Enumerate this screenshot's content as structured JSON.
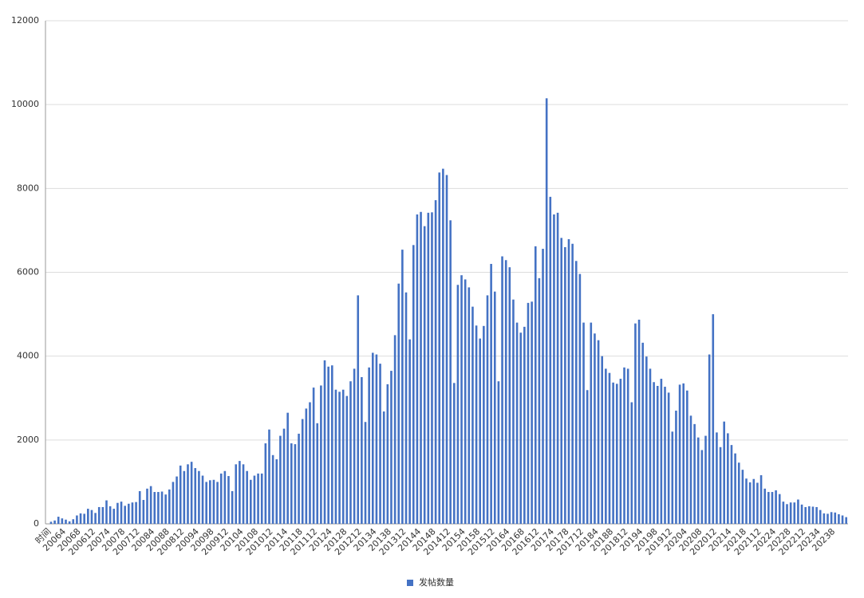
{
  "chart_data": {
    "type": "bar",
    "categories": [
      "时间",
      null,
      null,
      null,
      "20064",
      null,
      null,
      null,
      "20068",
      null,
      null,
      null,
      "200612",
      null,
      null,
      null,
      "20074",
      null,
      null,
      null,
      "20078",
      null,
      null,
      null,
      "200712",
      null,
      null,
      null,
      "20084",
      null,
      null,
      null,
      "20088",
      null,
      null,
      null,
      "200812",
      null,
      null,
      null,
      "20094",
      null,
      null,
      null,
      "20098",
      null,
      null,
      null,
      "200912",
      null,
      null,
      null,
      "20104",
      null,
      null,
      null,
      "20108",
      null,
      null,
      null,
      "201012",
      null,
      null,
      null,
      "20114",
      null,
      null,
      null,
      "20118",
      null,
      null,
      null,
      "201112",
      null,
      null,
      null,
      "20124",
      null,
      null,
      null,
      "20128",
      null,
      null,
      null,
      "201212",
      null,
      null,
      null,
      "20134",
      null,
      null,
      null,
      "20138",
      null,
      null,
      null,
      "201312",
      null,
      null,
      null,
      "20144",
      null,
      null,
      null,
      "20148",
      null,
      null,
      null,
      "201412",
      null,
      null,
      null,
      "20154",
      null,
      null,
      null,
      "20158",
      null,
      null,
      null,
      "201512",
      null,
      null,
      null,
      "20164",
      null,
      null,
      null,
      "20168",
      null,
      null,
      null,
      "201612",
      null,
      null,
      null,
      "20174",
      null,
      null,
      null,
      "20178",
      null,
      null,
      null,
      "201712",
      null,
      null,
      null,
      "20184",
      null,
      null,
      null,
      "20188",
      null,
      null,
      null,
      "201812",
      null,
      null,
      null,
      "20194",
      null,
      null,
      null,
      "20198",
      null,
      null,
      null,
      "201912",
      null,
      null,
      null,
      "20204",
      null,
      null,
      null,
      "20208",
      null,
      null,
      null,
      "202012",
      null,
      null,
      null,
      "20214",
      null,
      null,
      null,
      "20218",
      null,
      null,
      null,
      "202112",
      null,
      null,
      null,
      "20224",
      null,
      null,
      null,
      "20228",
      null,
      null,
      null,
      "202212",
      null,
      null,
      null,
      "20234",
      null,
      null,
      null,
      "20238",
      null,
      null,
      null,
      null
    ],
    "series": [
      {
        "name": "发帖数量",
        "color": "#4472c4",
        "values": [
          0,
          50,
          80,
          170,
          130,
          100,
          60,
          110,
          200,
          250,
          240,
          360,
          330,
          260,
          400,
          400,
          560,
          420,
          360,
          500,
          530,
          430,
          480,
          510,
          520,
          780,
          570,
          840,
          900,
          760,
          760,
          770,
          700,
          820,
          1000,
          1130,
          1390,
          1260,
          1420,
          1480,
          1330,
          1260,
          1150,
          1000,
          1040,
          1050,
          1000,
          1200,
          1260,
          1140,
          780,
          1420,
          1500,
          1420,
          1260,
          1050,
          1150,
          1200,
          1200,
          1920,
          2250,
          1640,
          1540,
          2100,
          2270,
          2650,
          1920,
          1900,
          2150,
          2500,
          2750,
          2900,
          3250,
          2400,
          3300,
          3900,
          3750,
          3780,
          3200,
          3150,
          3200,
          3050,
          3400,
          3700,
          5450,
          3500,
          2430,
          3730,
          4080,
          4040,
          3820,
          2680,
          3330,
          3650,
          4500,
          5730,
          6540,
          5520,
          4400,
          6650,
          7380,
          7440,
          7100,
          7420,
          7430,
          7720,
          8380,
          8470,
          8320,
          7240,
          3360,
          5700,
          5930,
          5830,
          5640,
          5180,
          4730,
          4420,
          4720,
          5450,
          6200,
          5540,
          3400,
          6380,
          6290,
          6120,
          5350,
          4800,
          4560,
          4700,
          5270,
          5300,
          6620,
          5860,
          6560,
          10150,
          7800,
          7380,
          7420,
          6820,
          6600,
          6790,
          6680,
          6270,
          5960,
          4800,
          3190,
          4800,
          4540,
          4380,
          4000,
          3700,
          3600,
          3370,
          3340,
          3460,
          3730,
          3700,
          2900,
          4780,
          4870,
          4320,
          3990,
          3700,
          3380,
          3290,
          3460,
          3270,
          3130,
          2200,
          2700,
          3320,
          3350,
          3180,
          2580,
          2380,
          2060,
          1760,
          2100,
          4040,
          5000,
          2180,
          1830,
          2440,
          2160,
          1880,
          1680,
          1460,
          1290,
          1080,
          990,
          1070,
          980,
          1160,
          840,
          760,
          760,
          800,
          710,
          530,
          470,
          510,
          510,
          580,
          460,
          400,
          420,
          410,
          400,
          330,
          250,
          240,
          280,
          270,
          230,
          200,
          160
        ]
      }
    ],
    "ylim": [
      0,
      12000
    ],
    "yticks": [
      0,
      2000,
      4000,
      6000,
      8000,
      10000,
      12000
    ],
    "grid": true,
    "legend": "bottom"
  }
}
